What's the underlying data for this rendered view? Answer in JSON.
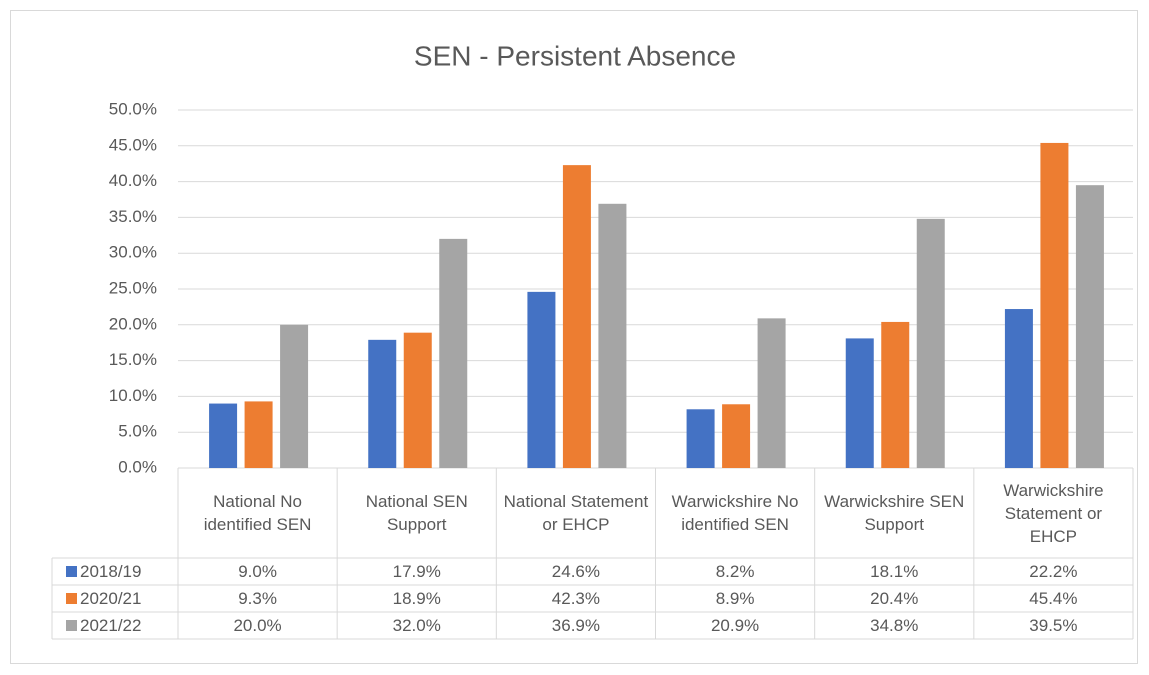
{
  "chart_data": {
    "type": "bar",
    "title": "SEN - Persistent Absence",
    "categories": [
      "National No identified SEN",
      "National SEN Support",
      "National Statement or EHCP",
      "Warwickshire No identified SEN",
      "Warwickshire SEN Support",
      "Warwickshire Statement or EHCP"
    ],
    "series": [
      {
        "name": "2018/19",
        "color": "#4472c4",
        "values": [
          9.0,
          17.9,
          24.6,
          8.2,
          18.1,
          22.2
        ],
        "value_labels": [
          "9.0%",
          "17.9%",
          "24.6%",
          "8.2%",
          "18.1%",
          "22.2%"
        ]
      },
      {
        "name": "2020/21",
        "color": "#ed7d31",
        "values": [
          9.3,
          18.9,
          42.3,
          8.9,
          20.4,
          45.4
        ],
        "value_labels": [
          "9.3%",
          "18.9%",
          "42.3%",
          "8.9%",
          "20.4%",
          "45.4%"
        ]
      },
      {
        "name": "2021/22",
        "color": "#a5a5a5",
        "values": [
          20.0,
          32.0,
          36.9,
          20.9,
          34.8,
          39.5
        ],
        "value_labels": [
          "20.0%",
          "32.0%",
          "36.9%",
          "20.9%",
          "34.8%",
          "39.5%"
        ]
      }
    ],
    "ylim": [
      0,
      50
    ],
    "yticks": [
      {
        "value": 0,
        "label": "0.0%"
      },
      {
        "value": 5,
        "label": "5.0%"
      },
      {
        "value": 10,
        "label": "10.0%"
      },
      {
        "value": 15,
        "label": "15.0%"
      },
      {
        "value": 20,
        "label": "20.0%"
      },
      {
        "value": 25,
        "label": "25.0%"
      },
      {
        "value": 30,
        "label": "30.0%"
      },
      {
        "value": 35,
        "label": "35.0%"
      },
      {
        "value": 40,
        "label": "40.0%"
      },
      {
        "value": 45,
        "label": "45.0%"
      },
      {
        "value": 50,
        "label": "50.0%"
      }
    ],
    "grid": true
  }
}
